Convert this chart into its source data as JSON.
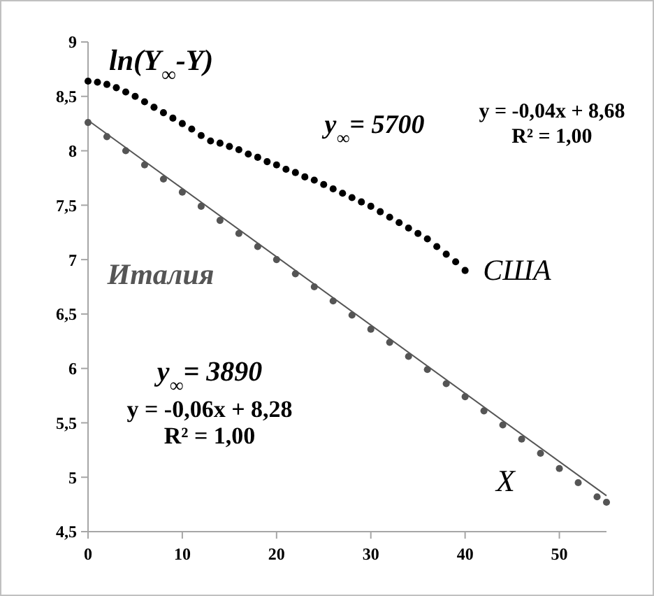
{
  "chart_data": {
    "type": "scatter",
    "xlabel": "X",
    "ylabel": "ln(Y$_{∞}$-Y)",
    "xlim": [
      0,
      55
    ],
    "ylim": [
      4.5,
      9
    ],
    "xticks": [
      0,
      10,
      20,
      30,
      40,
      50
    ],
    "yticks": [
      {
        "value": 4.5,
        "label": "4,5"
      },
      {
        "value": 5,
        "label": "5"
      },
      {
        "value": 5.5,
        "label": "5,5"
      },
      {
        "value": 6,
        "label": "6"
      },
      {
        "value": 6.5,
        "label": "6,5"
      },
      {
        "value": 7,
        "label": "7"
      },
      {
        "value": 7.5,
        "label": "7,5"
      },
      {
        "value": 8,
        "label": "8"
      },
      {
        "value": 8.5,
        "label": "8,5"
      },
      {
        "value": 9,
        "label": "9"
      }
    ],
    "grid": false,
    "marker": "circle",
    "annotations": [
      "y$_{∞}$= 5700",
      "y = -0,04x + 8,68",
      "R² = 1,00",
      "y$_{∞}$= 3890",
      "y = -0,06x + 8,28",
      "R² = 1,00"
    ],
    "series": [
      {
        "name": "США",
        "color": "#000000",
        "x": [
          0,
          1,
          2,
          3,
          4,
          5,
          6,
          7,
          8,
          9,
          10,
          11,
          12,
          13,
          14,
          15,
          16,
          17,
          18,
          19,
          20,
          21,
          22,
          23,
          24,
          25,
          26,
          27,
          28,
          29,
          30,
          31,
          32,
          33,
          34,
          35,
          36,
          37,
          38,
          39,
          40
        ],
        "values": [
          8.64,
          8.63,
          8.61,
          8.58,
          8.54,
          8.5,
          8.45,
          8.4,
          8.35,
          8.3,
          8.25,
          8.2,
          8.14,
          8.09,
          8.07,
          8.04,
          8.01,
          7.97,
          7.94,
          7.9,
          7.87,
          7.83,
          7.8,
          7.76,
          7.73,
          7.69,
          7.65,
          7.61,
          7.57,
          7.53,
          7.49,
          7.44,
          7.39,
          7.34,
          7.29,
          7.24,
          7.19,
          7.12,
          7.05,
          6.98,
          6.9
        ]
      },
      {
        "name": "Италия",
        "color": "#555555",
        "x": [
          0,
          2,
          4,
          6,
          8,
          10,
          12,
          14,
          16,
          18,
          20,
          22,
          24,
          26,
          28,
          30,
          32,
          34,
          36,
          38,
          40,
          42,
          44,
          46,
          48,
          50,
          52,
          54,
          55
        ],
        "values": [
          8.26,
          8.13,
          8.0,
          7.87,
          7.74,
          7.62,
          7.49,
          7.36,
          7.24,
          7.12,
          7.0,
          6.87,
          6.75,
          6.62,
          6.49,
          6.36,
          6.24,
          6.11,
          5.99,
          5.86,
          5.74,
          5.61,
          5.48,
          5.35,
          5.22,
          5.08,
          4.95,
          4.82,
          4.77
        ]
      },
      {
        "type": "line",
        "marker": "none",
        "color": "#555555",
        "x": [
          0,
          55
        ],
        "values": [
          8.28,
          4.83
        ]
      }
    ]
  }
}
